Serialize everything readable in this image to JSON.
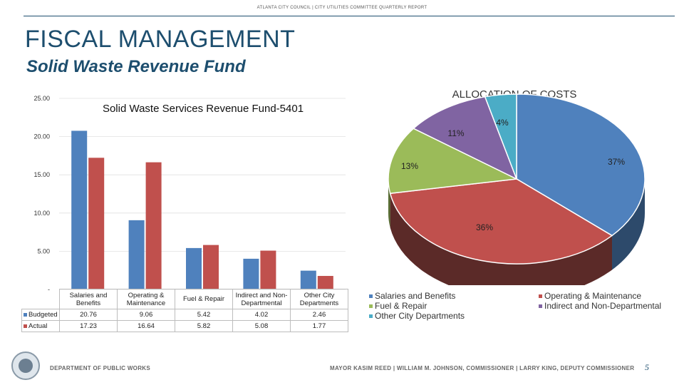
{
  "header": {
    "text": "ATLANTA CITY COUNCIL | CITY UTILITIES COMMITTEE QUARTERLY REPORT"
  },
  "page": {
    "title": "FISCAL MANAGEMENT",
    "subtitle": "Solid Waste Revenue Fund",
    "number": "5"
  },
  "footer": {
    "department": "DEPARTMENT OF PUBLIC WORKS",
    "officials": "MAYOR KASIM REED  |  WILLIAM M. JOHNSON, COMMISSIONER  |  LARRY KING, DEPUTY COMMISSIONER"
  },
  "colors": {
    "budgeted": "#4f81bd",
    "actual": "#c0504d",
    "green": "#9bbb59",
    "purple": "#8064a2",
    "teal": "#4bacc6",
    "brand": "#1d4e6e"
  },
  "chart_data": [
    {
      "type": "bar",
      "title": "Solid Waste Services Revenue Fund-5401",
      "categories": [
        "Salaries and Benefits",
        "Operating & Maintenance",
        "Fuel & Repair",
        "Indirect and Non-Departmental",
        "Other City Departments"
      ],
      "series": [
        {
          "name": "Budgeted",
          "values": [
            20.76,
            9.06,
            5.42,
            4.02,
            2.46
          ],
          "display": [
            "20.76",
            "9.06",
            "5.42",
            "4.02",
            "2.46"
          ]
        },
        {
          "name": "Actual",
          "values": [
            17.23,
            16.64,
            5.82,
            5.08,
            1.77
          ],
          "display": [
            "17.23",
            "16.64",
            "5.82",
            "5.08",
            "1.77"
          ]
        }
      ],
      "ylim": [
        0,
        25
      ],
      "yticks": [
        "-",
        "5.00",
        "10.00",
        "15.00",
        "20.00",
        "25.00"
      ],
      "data_table": true
    },
    {
      "type": "pie",
      "title": "ALLOCATION OF COSTS",
      "slices": [
        {
          "label": "Salaries and Benefits",
          "value": 37,
          "display": "37%"
        },
        {
          "label": "Operating & Maintenance",
          "value": 36,
          "display": "36%"
        },
        {
          "label": "Fuel & Repair",
          "value": 13,
          "display": "13%"
        },
        {
          "label": "Indirect and Non-Departmental",
          "value": 11,
          "display": "11%"
        },
        {
          "label": "Other City Departments",
          "value": 4,
          "display": "4%"
        }
      ],
      "legend": "bottom"
    }
  ]
}
